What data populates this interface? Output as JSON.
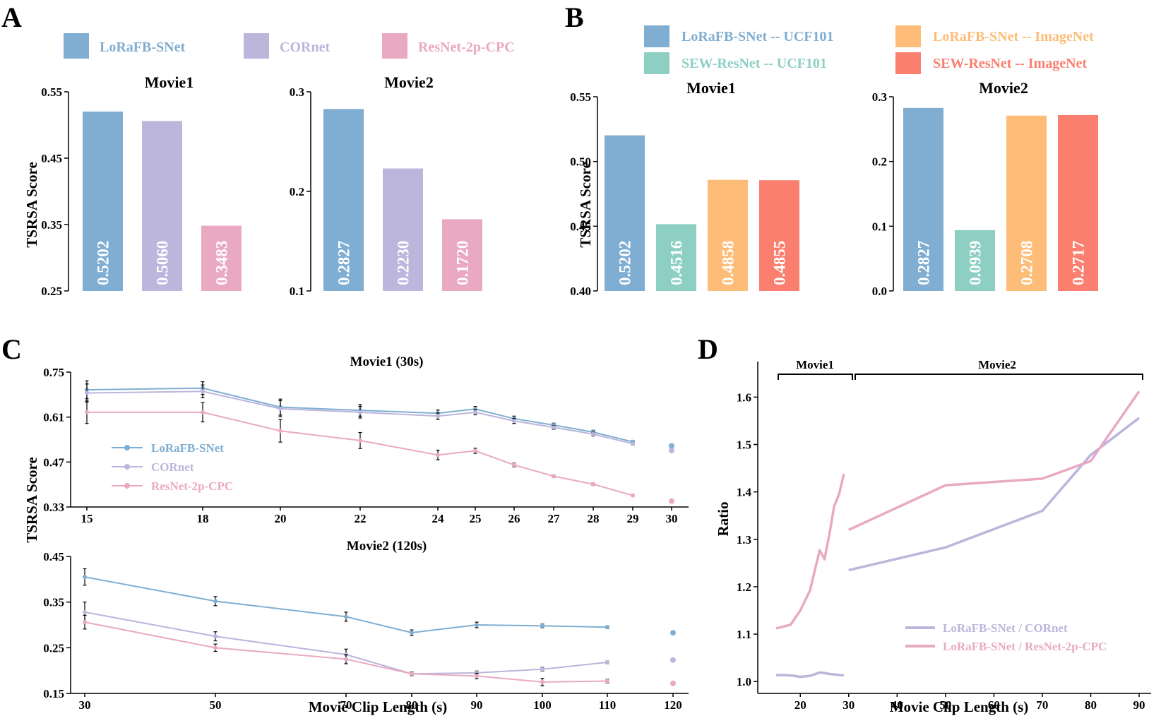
{
  "colors": {
    "lorafb": "#7faed2",
    "cornet": "#bcb5dc",
    "resnet": "#e9a9c2",
    "sew_ucf": "#8ecfc4",
    "lorafb_imagenet": "#fdbd78",
    "sew_imagenet": "#fa7f6f"
  },
  "panels": {
    "A": {
      "letter": "A",
      "ylabel": "TSRSA Score",
      "legend": [
        "LoRaFB-SNet",
        "CORnet",
        "ResNet-2p-CPC"
      ]
    },
    "B": {
      "letter": "B",
      "ylabel": "TSRSA Score",
      "legend": [
        "LoRaFB-SNet -- UCF101",
        "LoRaFB-SNet -- ImageNet",
        "SEW-ResNet -- UCF101",
        "SEW-ResNet -- ImageNet"
      ]
    },
    "C": {
      "letter": "C",
      "ylabel": "TSRSA Score",
      "xlabel": "Movie Clip Length (s)",
      "legend": [
        "LoRaFB-SNet",
        "CORnet",
        "ResNet-2p-CPC"
      ]
    },
    "D": {
      "letter": "D",
      "ylabel": "Ratio",
      "xlabel": "Movie Clip Length (s)",
      "bracket_labels": [
        "Movie1",
        "Movie2"
      ],
      "legend": [
        "LoRaFB-SNet / CORnet",
        "LoRaFB-SNet / ResNet-2p-CPC"
      ]
    }
  },
  "chart_data": [
    {
      "id": "A1",
      "type": "bar",
      "title": "Movie1",
      "categories": [
        "LoRaFB-SNet",
        "CORnet",
        "ResNet-2p-CPC"
      ],
      "values": [
        0.5202,
        0.506,
        0.3483
      ],
      "labels": [
        "0.5202",
        "0.5060",
        "0.3483"
      ],
      "ylim": [
        0.25,
        0.55
      ],
      "yticks": [
        "0.25",
        "0.35",
        "0.45",
        "0.55"
      ]
    },
    {
      "id": "A2",
      "type": "bar",
      "title": "Movie2",
      "categories": [
        "LoRaFB-SNet",
        "CORnet",
        "ResNet-2p-CPC"
      ],
      "values": [
        0.2827,
        0.223,
        0.172
      ],
      "labels": [
        "0.2827",
        "0.2230",
        "0.1720"
      ],
      "ylim": [
        0.1,
        0.3
      ],
      "yticks": [
        "0.1",
        "0.2",
        "0.3"
      ]
    },
    {
      "id": "B1",
      "type": "bar",
      "title": "Movie1",
      "categories": [
        "LoRaFB-SNet -- UCF101",
        "SEW-ResNet -- UCF101",
        "LoRaFB-SNet -- ImageNet",
        "SEW-ResNet -- ImageNet"
      ],
      "values": [
        0.5202,
        0.4516,
        0.4858,
        0.4855
      ],
      "labels": [
        "0.5202",
        "0.4516",
        "0.4858",
        "0.4855"
      ],
      "ylim": [
        0.4,
        0.55
      ],
      "yticks": [
        "0.40",
        "0.45",
        "0.50",
        "0.55"
      ]
    },
    {
      "id": "B2",
      "type": "bar",
      "title": "Movie2",
      "categories": [
        "LoRaFB-SNet -- UCF101",
        "SEW-ResNet -- UCF101",
        "LoRaFB-SNet -- ImageNet",
        "SEW-ResNet -- ImageNet"
      ],
      "values": [
        0.2827,
        0.0939,
        0.2708,
        0.2717
      ],
      "labels": [
        "0.2827",
        "0.0939",
        "0.2708",
        "0.2717"
      ],
      "ylim": [
        0.0,
        0.3
      ],
      "yticks": [
        "0.0",
        "0.1",
        "0.2",
        "0.3"
      ]
    },
    {
      "id": "C1",
      "type": "line",
      "title": "Movie1 (30s)",
      "x": [
        15,
        18,
        20,
        22,
        24,
        25,
        26,
        27,
        28,
        29
      ],
      "xticks": [
        "15",
        "18",
        "20",
        "22",
        "24",
        "25",
        "26",
        "27",
        "28",
        "29",
        "30"
      ],
      "ylim": [
        0.33,
        0.75
      ],
      "yticks": [
        "0.33",
        "0.47",
        "0.61",
        "0.75"
      ],
      "series": [
        {
          "name": "LoRaFB-SNet",
          "values": [
            0.695,
            0.7,
            0.641,
            0.631,
            0.622,
            0.635,
            0.605,
            0.585,
            0.563,
            0.533
          ],
          "err": [
            0.028,
            0.02,
            0.025,
            0.018,
            0.01,
            0.008,
            0.008,
            0.006,
            0.006,
            0.004
          ],
          "full": 0.5202
        },
        {
          "name": "CORnet",
          "values": [
            0.685,
            0.69,
            0.636,
            0.625,
            0.613,
            0.625,
            0.598,
            0.578,
            0.557,
            0.527
          ],
          "err": [
            0.028,
            0.02,
            0.025,
            0.018,
            0.01,
            0.008,
            0.008,
            0.006,
            0.006,
            0.004
          ],
          "full": 0.506
        },
        {
          "name": "ResNet-2p-CPC",
          "values": [
            0.625,
            0.625,
            0.567,
            0.537,
            0.492,
            0.505,
            0.461,
            0.426,
            0.401,
            0.366
          ],
          "err": [
            0.035,
            0.03,
            0.035,
            0.025,
            0.015,
            0.008,
            0.006,
            0.004,
            0.004,
            0.003
          ],
          "full": 0.3483
        }
      ]
    },
    {
      "id": "C2",
      "type": "line",
      "title": "Movie2 (120s)",
      "x": [
        30,
        50,
        70,
        80,
        90,
        100,
        110
      ],
      "xticks": [
        "30",
        "50",
        "70",
        "80",
        "90",
        "100",
        "110",
        "120"
      ],
      "ylim": [
        0.15,
        0.45
      ],
      "yticks": [
        "0.15",
        "0.25",
        "0.35",
        "0.45"
      ],
      "series": [
        {
          "name": "LoRaFB-SNet",
          "values": [
            0.405,
            0.352,
            0.318,
            0.283,
            0.3,
            0.298,
            0.295
          ],
          "err": [
            0.018,
            0.01,
            0.01,
            0.006,
            0.006,
            0.004,
            0.003
          ],
          "full": 0.2827
        },
        {
          "name": "CORnet",
          "values": [
            0.328,
            0.275,
            0.235,
            0.193,
            0.195,
            0.203,
            0.218
          ],
          "err": [
            0.022,
            0.01,
            0.012,
            0.004,
            0.004,
            0.004,
            0.003
          ],
          "full": 0.223
        },
        {
          "name": "ResNet-2p-CPC",
          "values": [
            0.306,
            0.25,
            0.225,
            0.193,
            0.188,
            0.175,
            0.177
          ],
          "err": [
            0.015,
            0.008,
            0.01,
            0.004,
            0.006,
            0.008,
            0.004
          ],
          "full": 0.172
        }
      ]
    },
    {
      "id": "D",
      "type": "line",
      "xlim": [
        15,
        90
      ],
      "ylim": [
        0.975,
        1.675
      ],
      "xticks": [
        "20",
        "30",
        "40",
        "50",
        "60",
        "70",
        "80",
        "90"
      ],
      "yticks": [
        "1.0",
        "1.1",
        "1.2",
        "1.3",
        "1.4",
        "1.5",
        "1.6"
      ],
      "series": [
        {
          "name": "LoRaFB-SNet / CORnet",
          "segments": [
            {
              "x": [
                15,
                18,
                20,
                22,
                24,
                25,
                26,
                27,
                28,
                29
              ],
              "y": [
                1.014,
                1.013,
                1.01,
                1.012,
                1.019,
                1.018,
                1.016,
                1.015,
                1.014,
                1.013
              ]
            },
            {
              "x": [
                30,
                50,
                70,
                80,
                90
              ],
              "y": [
                1.235,
                1.283,
                1.36,
                1.478,
                1.556
              ]
            }
          ]
        },
        {
          "name": "LoRaFB-SNet / ResNet-2p-CPC",
          "segments": [
            {
              "x": [
                15,
                18,
                20,
                22,
                24,
                25,
                26,
                27,
                28,
                29
              ],
              "y": [
                1.112,
                1.12,
                1.15,
                1.192,
                1.277,
                1.258,
                1.31,
                1.37,
                1.395,
                1.438
              ]
            },
            {
              "x": [
                30,
                50,
                70,
                80,
                90
              ],
              "y": [
                1.32,
                1.414,
                1.428,
                1.465,
                1.612
              ]
            }
          ]
        }
      ]
    }
  ]
}
